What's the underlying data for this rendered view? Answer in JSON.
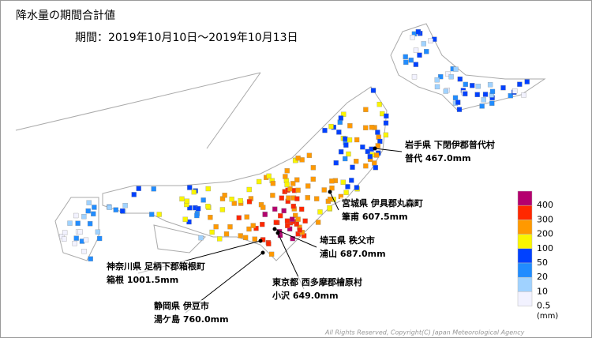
{
  "header": {
    "title": "降水量の期間合計値",
    "period": "期間：2019年10月10日～2019年10月13日"
  },
  "legend": {
    "unit": "(mm)",
    "items": [
      {
        "value": 400,
        "color": "#b4006e"
      },
      {
        "value": 300,
        "color": "#ff2800"
      },
      {
        "value": 200,
        "color": "#ff9900"
      },
      {
        "value": 100,
        "color": "#faf500"
      },
      {
        "value": 50,
        "color": "#0041ff"
      },
      {
        "value": 20,
        "color": "#218cff"
      },
      {
        "value": 10,
        "color": "#a0d2ff"
      },
      {
        "value": 0.5,
        "color": "#f2f2ff"
      }
    ]
  },
  "annotations": [
    {
      "place": "岩手県 下閉伊郡普代村",
      "amount": "普代 467.0mm"
    },
    {
      "place": "宮城県 伊具郡丸森町",
      "amount": "筆甫 607.5mm"
    },
    {
      "place": "埼玉県 秩父市",
      "amount": "浦山 687.0mm"
    },
    {
      "place": "神奈川県 足柄下郡箱根町",
      "amount": "箱根 1001.5mm"
    },
    {
      "place": "東京都 西多摩郡檜原村",
      "amount": "小沢 649.0mm"
    },
    {
      "place": "静岡県 伊豆市",
      "amount": "湯ケ島 760.0mm"
    }
  ],
  "copyright": "All Rights Reserved, Copyright(C) Japan Meteorological Agency"
}
